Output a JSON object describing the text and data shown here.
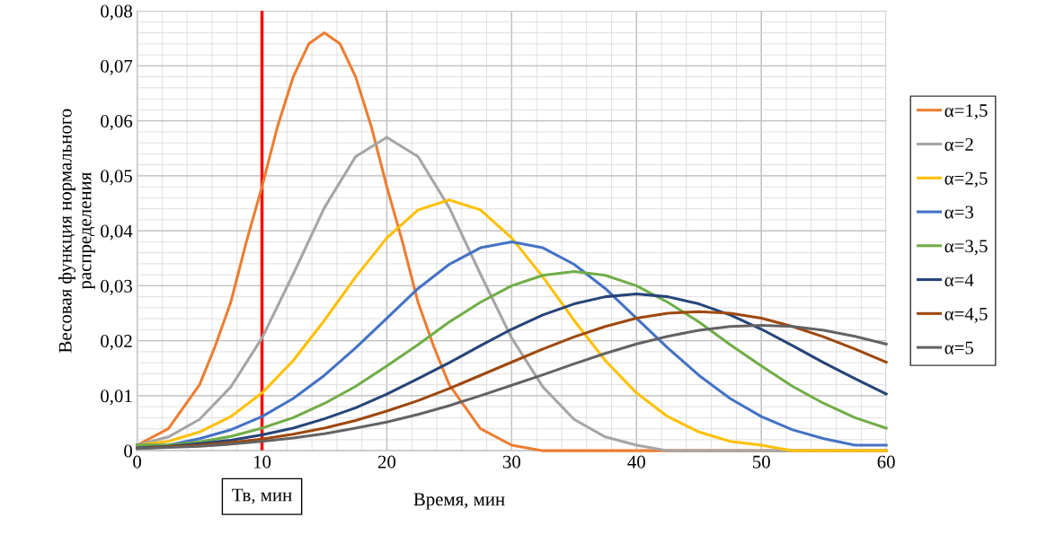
{
  "chart_data": {
    "type": "line",
    "xlabel": "Время, мин",
    "ylabel": "Весовая функция нормального\nраспределения",
    "x": [
      0,
      2.5,
      5,
      7.5,
      10,
      12.5,
      15,
      17.5,
      20,
      22.5,
      25,
      27.5,
      30,
      32.5,
      35,
      37.5,
      40,
      42.5,
      45,
      47.5,
      50,
      52.5,
      55,
      57.5,
      60
    ],
    "series": [
      {
        "name": "α=1,5",
        "color": "#ed7d31",
        "x": [
          0,
          2.5,
          5,
          6.25,
          7.5,
          8.75,
          10,
          11.25,
          12.5,
          13.75,
          15,
          16.25,
          17.5,
          18.75,
          20,
          21.25,
          22.5,
          23.75,
          25,
          27.5,
          30,
          32.5,
          35,
          37.5,
          40,
          45,
          50,
          55,
          60
        ],
        "values": [
          0.001,
          0.004,
          0.012,
          0.019,
          0.027,
          0.038,
          0.048,
          0.059,
          0.068,
          0.074,
          0.076,
          0.074,
          0.068,
          0.059,
          0.048,
          0.038,
          0.027,
          0.019,
          0.012,
          0.004,
          0.001,
          0,
          0,
          0,
          0,
          0,
          0,
          0,
          0
        ]
      },
      {
        "name": "α=2",
        "color": "#a5a5a5",
        "values": [
          0.001,
          0.0025,
          0.0057,
          0.0116,
          0.0205,
          0.0321,
          0.0442,
          0.0535,
          0.057,
          0.0535,
          0.0442,
          0.0321,
          0.0205,
          0.0116,
          0.0057,
          0.0025,
          0.001,
          0,
          0,
          0,
          0,
          0,
          0,
          0,
          0
        ]
      },
      {
        "name": "α=2,5",
        "color": "#ffc000",
        "values": [
          0.001,
          0.0017,
          0.0034,
          0.0062,
          0.0105,
          0.0164,
          0.0237,
          0.0316,
          0.0387,
          0.0438,
          0.0456,
          0.0438,
          0.0387,
          0.0316,
          0.0237,
          0.0164,
          0.0105,
          0.0062,
          0.0034,
          0.0017,
          0.001,
          0,
          0,
          0,
          0
        ]
      },
      {
        "name": "α=3",
        "color": "#4472c4",
        "values": [
          0.001,
          0.001,
          0.0022,
          0.0038,
          0.0062,
          0.0095,
          0.0137,
          0.0187,
          0.0241,
          0.0295,
          0.0339,
          0.0369,
          0.038,
          0.0369,
          0.0339,
          0.0295,
          0.0241,
          0.0187,
          0.0137,
          0.0095,
          0.0062,
          0.0038,
          0.0022,
          0.001,
          0.001
        ]
      },
      {
        "name": "α=3,5",
        "color": "#70ad47",
        "values": [
          0.001,
          0.001,
          0.0016,
          0.0026,
          0.0041,
          0.006,
          0.0086,
          0.0117,
          0.0154,
          0.0193,
          0.0234,
          0.027,
          0.03,
          0.0319,
          0.0326,
          0.0319,
          0.03,
          0.027,
          0.0234,
          0.0193,
          0.0154,
          0.0117,
          0.0086,
          0.006,
          0.0041
        ]
      },
      {
        "name": "α=4",
        "color": "#264478",
        "values": [
          0.0005,
          0.0008,
          0.0013,
          0.0019,
          0.0029,
          0.0041,
          0.0058,
          0.0078,
          0.0103,
          0.0131,
          0.016,
          0.0191,
          0.0221,
          0.0247,
          0.0267,
          0.028,
          0.0285,
          0.028,
          0.0267,
          0.0247,
          0.0221,
          0.0191,
          0.016,
          0.0131,
          0.0103
        ]
      },
      {
        "name": "α=4,5",
        "color": "#9e480e",
        "values": [
          0.0004,
          0.0007,
          0.001,
          0.0015,
          0.0021,
          0.003,
          0.0041,
          0.0055,
          0.0072,
          0.0091,
          0.0113,
          0.0137,
          0.0161,
          0.0185,
          0.0207,
          0.0226,
          0.0241,
          0.025,
          0.0253,
          0.025,
          0.0241,
          0.0226,
          0.0207,
          0.0185,
          0.0161
        ]
      },
      {
        "name": "α=5",
        "color": "#636363",
        "values": [
          0.0004,
          0.0006,
          0.0008,
          0.0012,
          0.0017,
          0.0023,
          0.0031,
          0.0041,
          0.0052,
          0.0066,
          0.0082,
          0.01,
          0.0119,
          0.0138,
          0.0158,
          0.0177,
          0.0194,
          0.0208,
          0.0219,
          0.0226,
          0.0228,
          0.0226,
          0.0219,
          0.0208,
          0.0194
        ]
      }
    ],
    "xlim": [
      0,
      60
    ],
    "xticks": [
      0,
      10,
      20,
      30,
      40,
      50,
      60
    ],
    "ylim": [
      0,
      0.08
    ],
    "yticks": [
      0,
      {
        "value": 0.01,
        "label": "0,01"
      },
      {
        "value": 0.02,
        "label": "0,02"
      },
      {
        "value": 0.03,
        "label": "0,03"
      },
      {
        "value": 0.04,
        "label": "0,04"
      },
      {
        "value": 0.05,
        "label": "0,05"
      },
      {
        "value": 0.06,
        "label": "0,06"
      },
      {
        "value": 0.07,
        "label": "0,07"
      },
      {
        "value": 0.08,
        "label": "0,08"
      }
    ],
    "ref_lines": [
      {
        "axis": "x",
        "value": 10,
        "label": "Тв, мин",
        "color": "#ff0000"
      }
    ],
    "grid": true,
    "legend": "right",
    "marker": "none",
    "line_style": "solid"
  }
}
